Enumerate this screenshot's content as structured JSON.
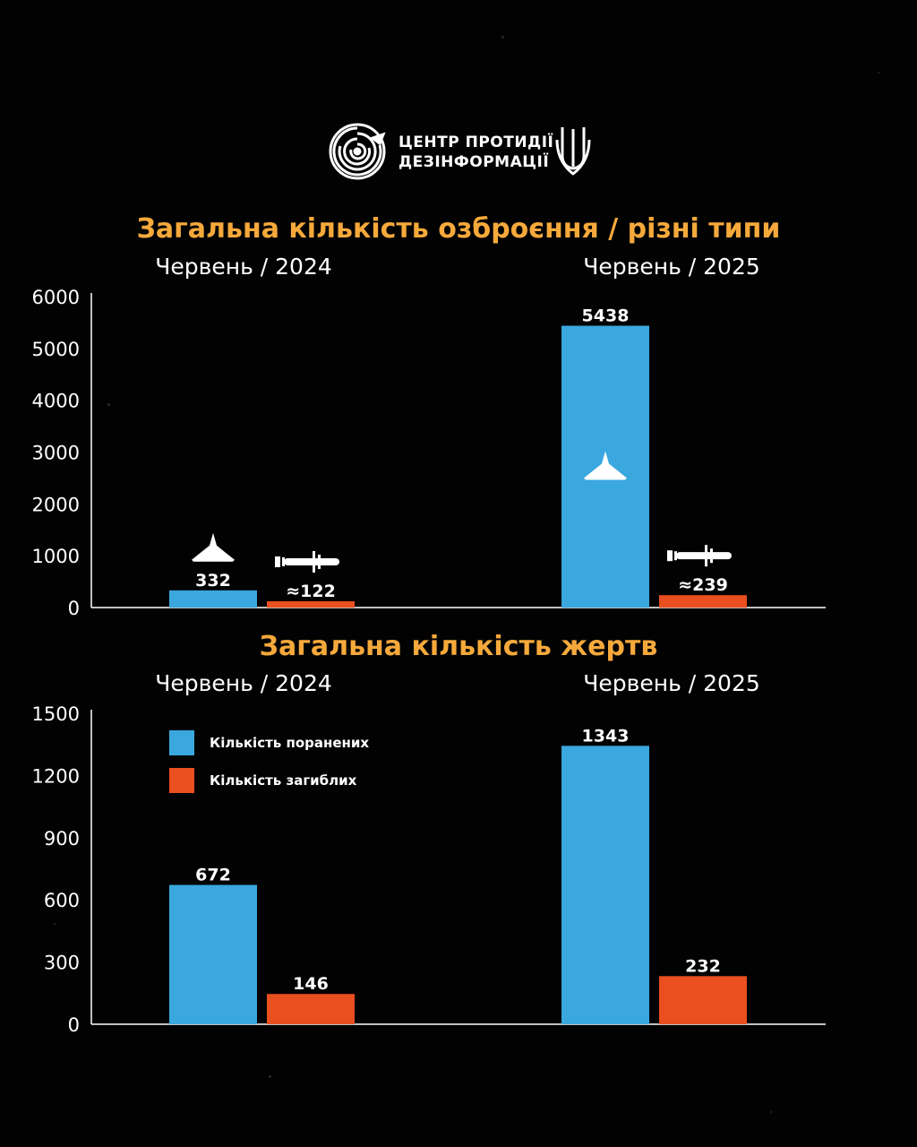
{
  "logo": {
    "line1": "ЦЕНТР ПРОТИДІЇ",
    "line2": "ДЕЗІНФОРМАЦІЇ",
    "icons": [
      "maze-circle-logo-icon",
      "trident-icon"
    ]
  },
  "colors": {
    "background": "#020202",
    "title": "#f6a93b",
    "blue": "#3aa7df",
    "orange": "#ea4f1f",
    "axis": "#ffffff"
  },
  "chart_data": [
    {
      "type": "bar",
      "title": "Загальна кількість озброєння / різні типи",
      "categories": [
        "Червень / 2024",
        "Червень / 2025"
      ],
      "ylim": [
        0,
        6000
      ],
      "yticks": [
        0,
        1000,
        2000,
        3000,
        4000,
        5000,
        6000
      ],
      "series": [
        {
          "values": [
            332,
            5438
          ],
          "labels": [
            "332",
            "5438"
          ],
          "icon": "drone-icon"
        },
        {
          "values": [
            122,
            239
          ],
          "labels": [
            "≈122",
            "≈239"
          ],
          "icon": "missile-icon"
        }
      ],
      "grid": false
    },
    {
      "type": "bar",
      "title": "Загальна кількість жертв",
      "categories": [
        "Червень / 2024",
        "Червень / 2025"
      ],
      "ylim": [
        0,
        1500
      ],
      "yticks": [
        0,
        300,
        600,
        900,
        1200,
        1500
      ],
      "series": [
        {
          "name": "Кількість поранених",
          "values": [
            672,
            1343
          ],
          "labels": [
            "672",
            "1343"
          ]
        },
        {
          "name": "Кількість загиблих",
          "values": [
            146,
            232
          ],
          "labels": [
            "146",
            "232"
          ]
        }
      ],
      "legend": "top-left",
      "grid": false
    }
  ]
}
